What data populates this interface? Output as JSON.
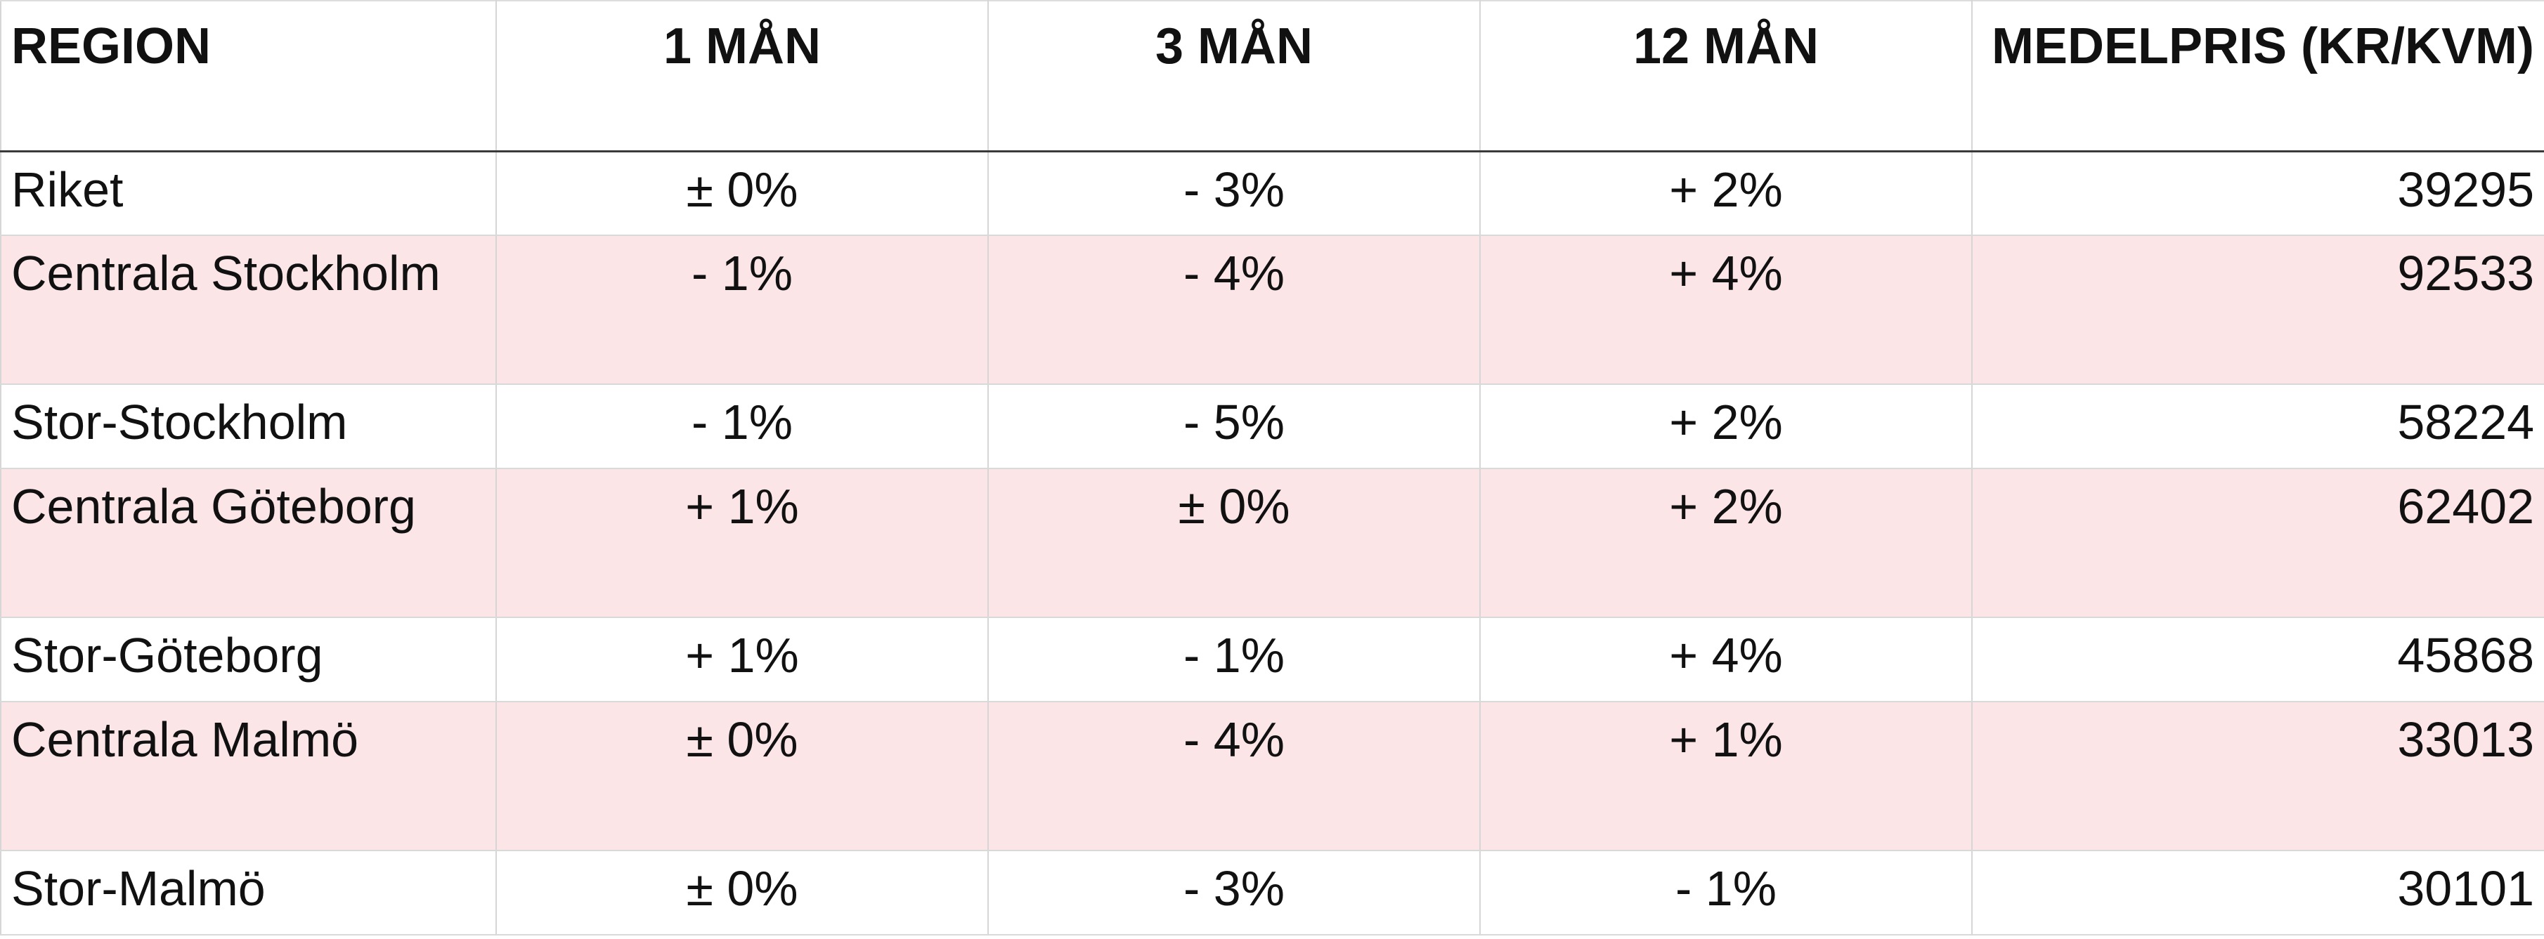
{
  "table": {
    "headers": {
      "region": "REGION",
      "m1": "1 MÅN",
      "m3": "3 MÅN",
      "m12": "12 MÅN",
      "price": "MEDELPRIS (KR/KVM)"
    },
    "rows": [
      {
        "region": "Riket",
        "m1": "± 0%",
        "m3": "- 3%",
        "m12": "+ 2%",
        "price": "39295"
      },
      {
        "region": "Centrala Stockholm",
        "m1": "- 1%",
        "m3": "- 4%",
        "m12": "+ 4%",
        "price": "92533"
      },
      {
        "region": "Stor-Stockholm",
        "m1": "- 1%",
        "m3": "- 5%",
        "m12": "+ 2%",
        "price": "58224"
      },
      {
        "region": "Centrala Göteborg",
        "m1": "+ 1%",
        "m3": "± 0%",
        "m12": "+ 2%",
        "price": "62402"
      },
      {
        "region": "Stor-Göteborg",
        "m1": "+ 1%",
        "m3": "- 1%",
        "m12": "+ 4%",
        "price": "45868"
      },
      {
        "region": "Centrala Malmö",
        "m1": "± 0%",
        "m3": "- 4%",
        "m12": "+ 1%",
        "price": "33013"
      },
      {
        "region": "Stor-Malmö",
        "m1": "± 0%",
        "m3": "- 3%",
        "m12": "- 1%",
        "price": "30101"
      }
    ]
  },
  "colors": {
    "shaded_row": "#fbe5e7",
    "header_rule": "#3a3a3a",
    "grid": "#d9d9d9",
    "text": "#111111"
  }
}
